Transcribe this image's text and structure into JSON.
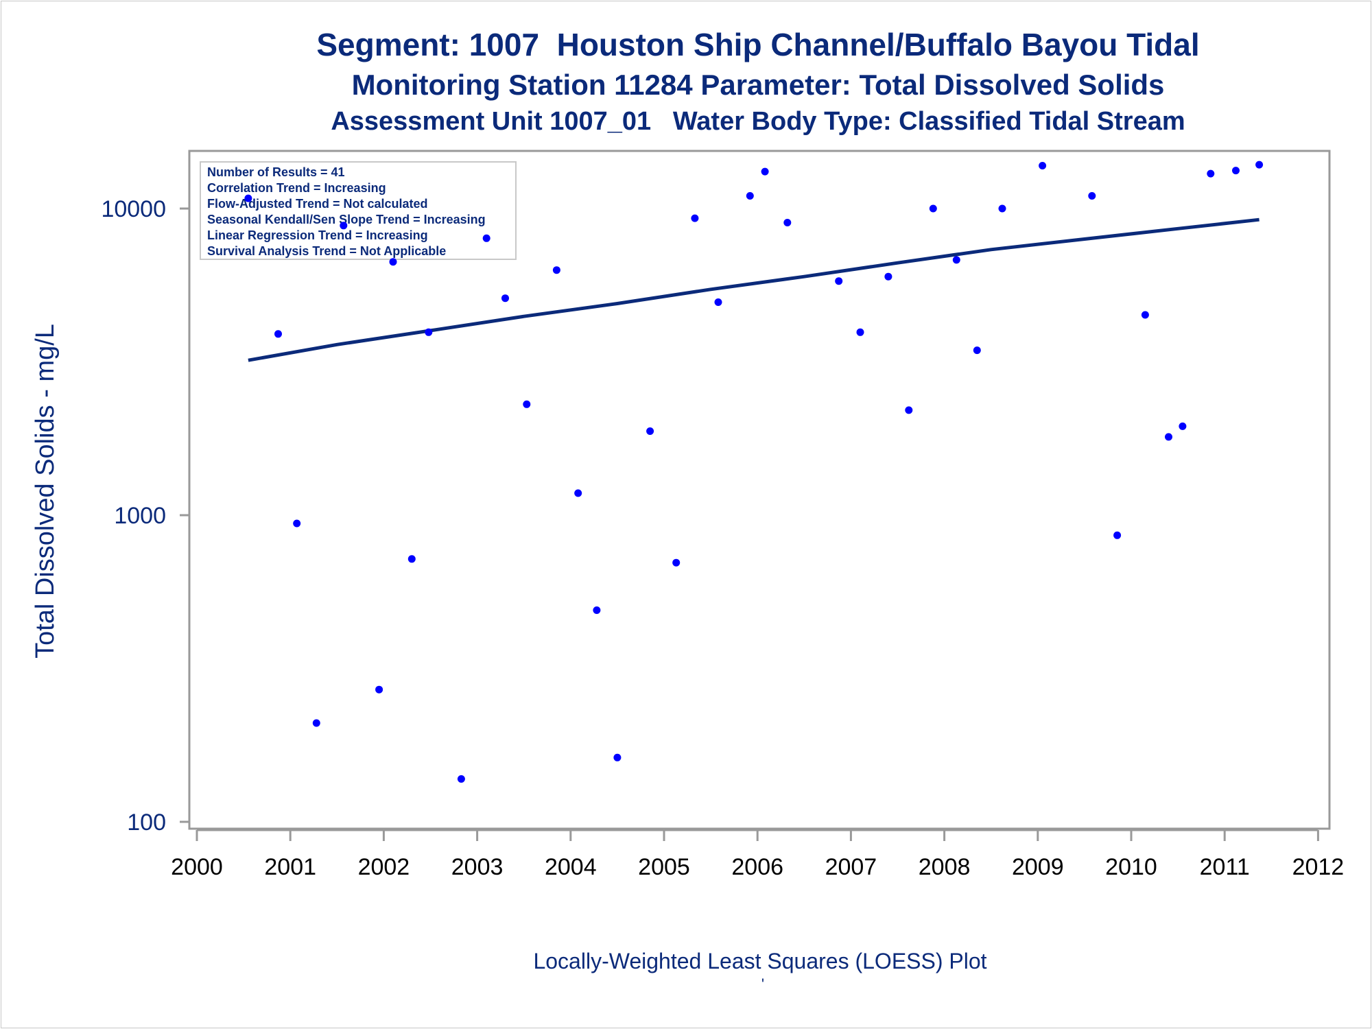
{
  "titles": {
    "line1": "Segment: 1007  Houston Ship Channel/Buffalo Bayou Tidal",
    "line2": "Monitoring Station 11284 Parameter: Total Dissolved Solids",
    "line3": "Assessment Unit 1007_01   Water Body Type: Classified Tidal Stream"
  },
  "legend": [
    "Number of Results = 41",
    "Correlation Trend = Increasing",
    "Flow-Adjusted Trend = Not calculated",
    "Seasonal Kendall/Sen Slope Trend = Increasing",
    "Linear Regression Trend = Increasing",
    "Survival Analysis Trend = Not Applicable"
  ],
  "footnote": "Locally-Weighted Least Squares (LOESS) Plot",
  "colors": {
    "title": "#0b2a7a",
    "points": "#0000ff",
    "trend_line": "#0b2a7a",
    "frame": "#999999",
    "x_tick_text": "#000000"
  },
  "chart_data": {
    "type": "scatter",
    "title": "Segment: 1007  Houston Ship Channel/Buffalo Bayou Tidal",
    "ylabel": "Total Dissolved Solids - mg/L",
    "xlabel": "",
    "yscale": "log",
    "xlim": [
      2000,
      2012
    ],
    "ylim": [
      100,
      15000
    ],
    "x_ticks": [
      "2000",
      "2001",
      "2002",
      "2003",
      "2004",
      "2005",
      "2006",
      "2007",
      "2008",
      "2009",
      "2010",
      "2011",
      "2012"
    ],
    "y_ticks": [
      100,
      1000,
      10000
    ],
    "y_tick_labels": [
      "100",
      "1000",
      "10000"
    ],
    "grid": false,
    "legend_position": "top-left",
    "points": {
      "x": [
        2000.55,
        2000.87,
        2001.07,
        2001.28,
        2001.57,
        2001.95,
        2002.1,
        2002.3,
        2002.48,
        2002.83,
        2003.1,
        2003.3,
        2003.53,
        2003.85,
        2004.08,
        2004.28,
        2004.5,
        2004.85,
        2005.13,
        2005.33,
        2005.58,
        2005.92,
        2006.08,
        2006.32,
        2006.87,
        2007.1,
        2007.4,
        2007.62,
        2007.88,
        2008.13,
        2008.35,
        2008.62,
        2009.05,
        2009.58,
        2009.85,
        2010.15,
        2010.4,
        2010.55,
        2010.85,
        2011.12,
        2011.37
      ],
      "y": [
        10800,
        3900,
        940,
        210,
        8800,
        270,
        6700,
        720,
        3950,
        138,
        8000,
        5100,
        2300,
        6300,
        1180,
        490,
        162,
        1880,
        700,
        9300,
        4950,
        11000,
        13200,
        9000,
        5800,
        3950,
        6000,
        2200,
        10000,
        6800,
        3450,
        10000,
        13800,
        11000,
        860,
        4500,
        1800,
        1950,
        13000,
        13300,
        13900
      ]
    },
    "trend_line": {
      "name": "",
      "x": [
        2000.55,
        2001.5,
        2002.5,
        2003.5,
        2004.5,
        2005.5,
        2006.5,
        2007.5,
        2008.5,
        2009.5,
        2010.5,
        2011.37
      ],
      "y": [
        3200,
        3600,
        4000,
        4450,
        4900,
        5450,
        6000,
        6650,
        7350,
        7950,
        8600,
        9200
      ]
    }
  }
}
